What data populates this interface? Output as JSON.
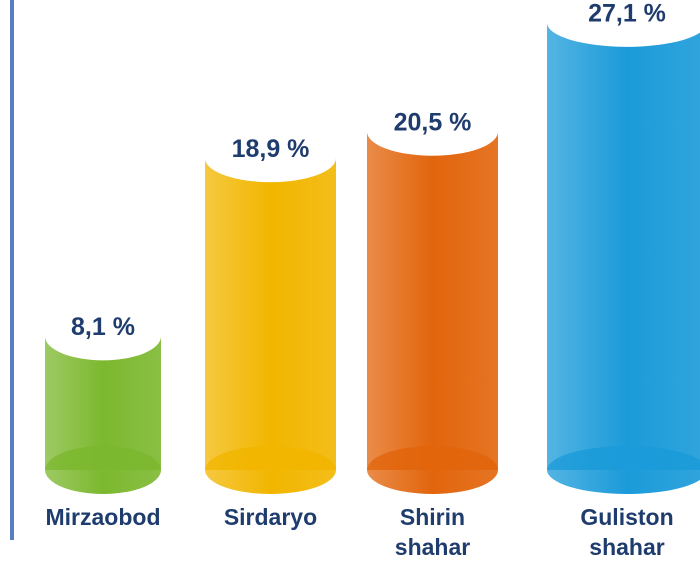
{
  "chart_data": {
    "type": "bar",
    "categories": [
      "Mirzaobod",
      "Sirdaryo",
      "Shirin shahar",
      "Guliston shahar"
    ],
    "values": [
      8.1,
      18.9,
      20.5,
      27.1
    ],
    "value_labels": [
      "8,1 %",
      "18,9 %",
      "20,5 %",
      "27,1 %"
    ],
    "colors": [
      "#7cb82f",
      "#f2b600",
      "#e2650c",
      "#1b9bd9"
    ]
  }
}
